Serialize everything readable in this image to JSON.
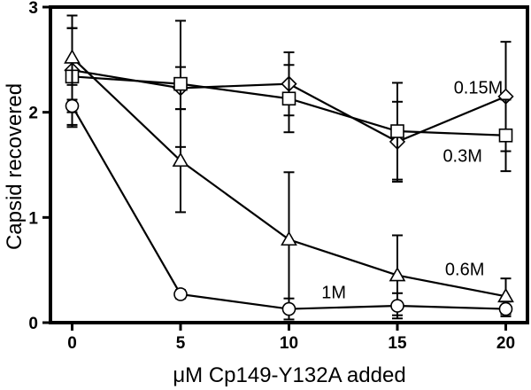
{
  "chart_data": {
    "type": "line",
    "title": "",
    "xlabel": "μM Cp149-Y132A added",
    "ylabel": "Capsid recovered",
    "xlim": [
      -1,
      21
    ],
    "ylim": [
      0,
      3
    ],
    "xticks": [
      0,
      5,
      10,
      15,
      20
    ],
    "yticks": [
      0,
      1,
      2,
      3
    ],
    "grid": false,
    "legend": "none",
    "x": [
      0,
      5,
      10,
      15,
      20
    ],
    "series": [
      {
        "name": "0.15M",
        "marker": "diamond",
        "values": [
          2.4,
          2.23,
          2.27,
          1.72,
          2.15
        ],
        "errors": [
          0.4,
          0.2,
          0.3,
          0.38,
          0.52
        ]
      },
      {
        "name": "0.3M",
        "marker": "square",
        "values": [
          2.34,
          2.27,
          2.13,
          1.82,
          1.78
        ],
        "errors": [
          0.46,
          0.6,
          0.32,
          0.46,
          0.34
        ]
      },
      {
        "name": "0.6M",
        "marker": "triangle",
        "values": [
          2.52,
          1.54,
          0.79,
          0.45,
          0.25
        ],
        "errors": [
          0.4,
          0.49,
          0.64,
          0.38,
          0.17
        ]
      },
      {
        "name": "1M",
        "marker": "circle",
        "values": [
          2.06,
          0.27,
          0.13,
          0.16,
          0.13
        ],
        "errors": [
          0.2,
          0.04,
          0.1,
          0.12,
          0.07
        ]
      }
    ],
    "annotations": [
      {
        "text": "0.15M",
        "series": "0.15M",
        "x": 17.6,
        "y": 2.18
      },
      {
        "text": "0.3M",
        "series": "0.3M",
        "x": 17.1,
        "y": 1.53
      },
      {
        "text": "0.6M",
        "series": "0.6M",
        "x": 17.2,
        "y": 0.45
      },
      {
        "text": "1M",
        "series": "1M",
        "x": 11.5,
        "y": 0.23
      }
    ]
  }
}
